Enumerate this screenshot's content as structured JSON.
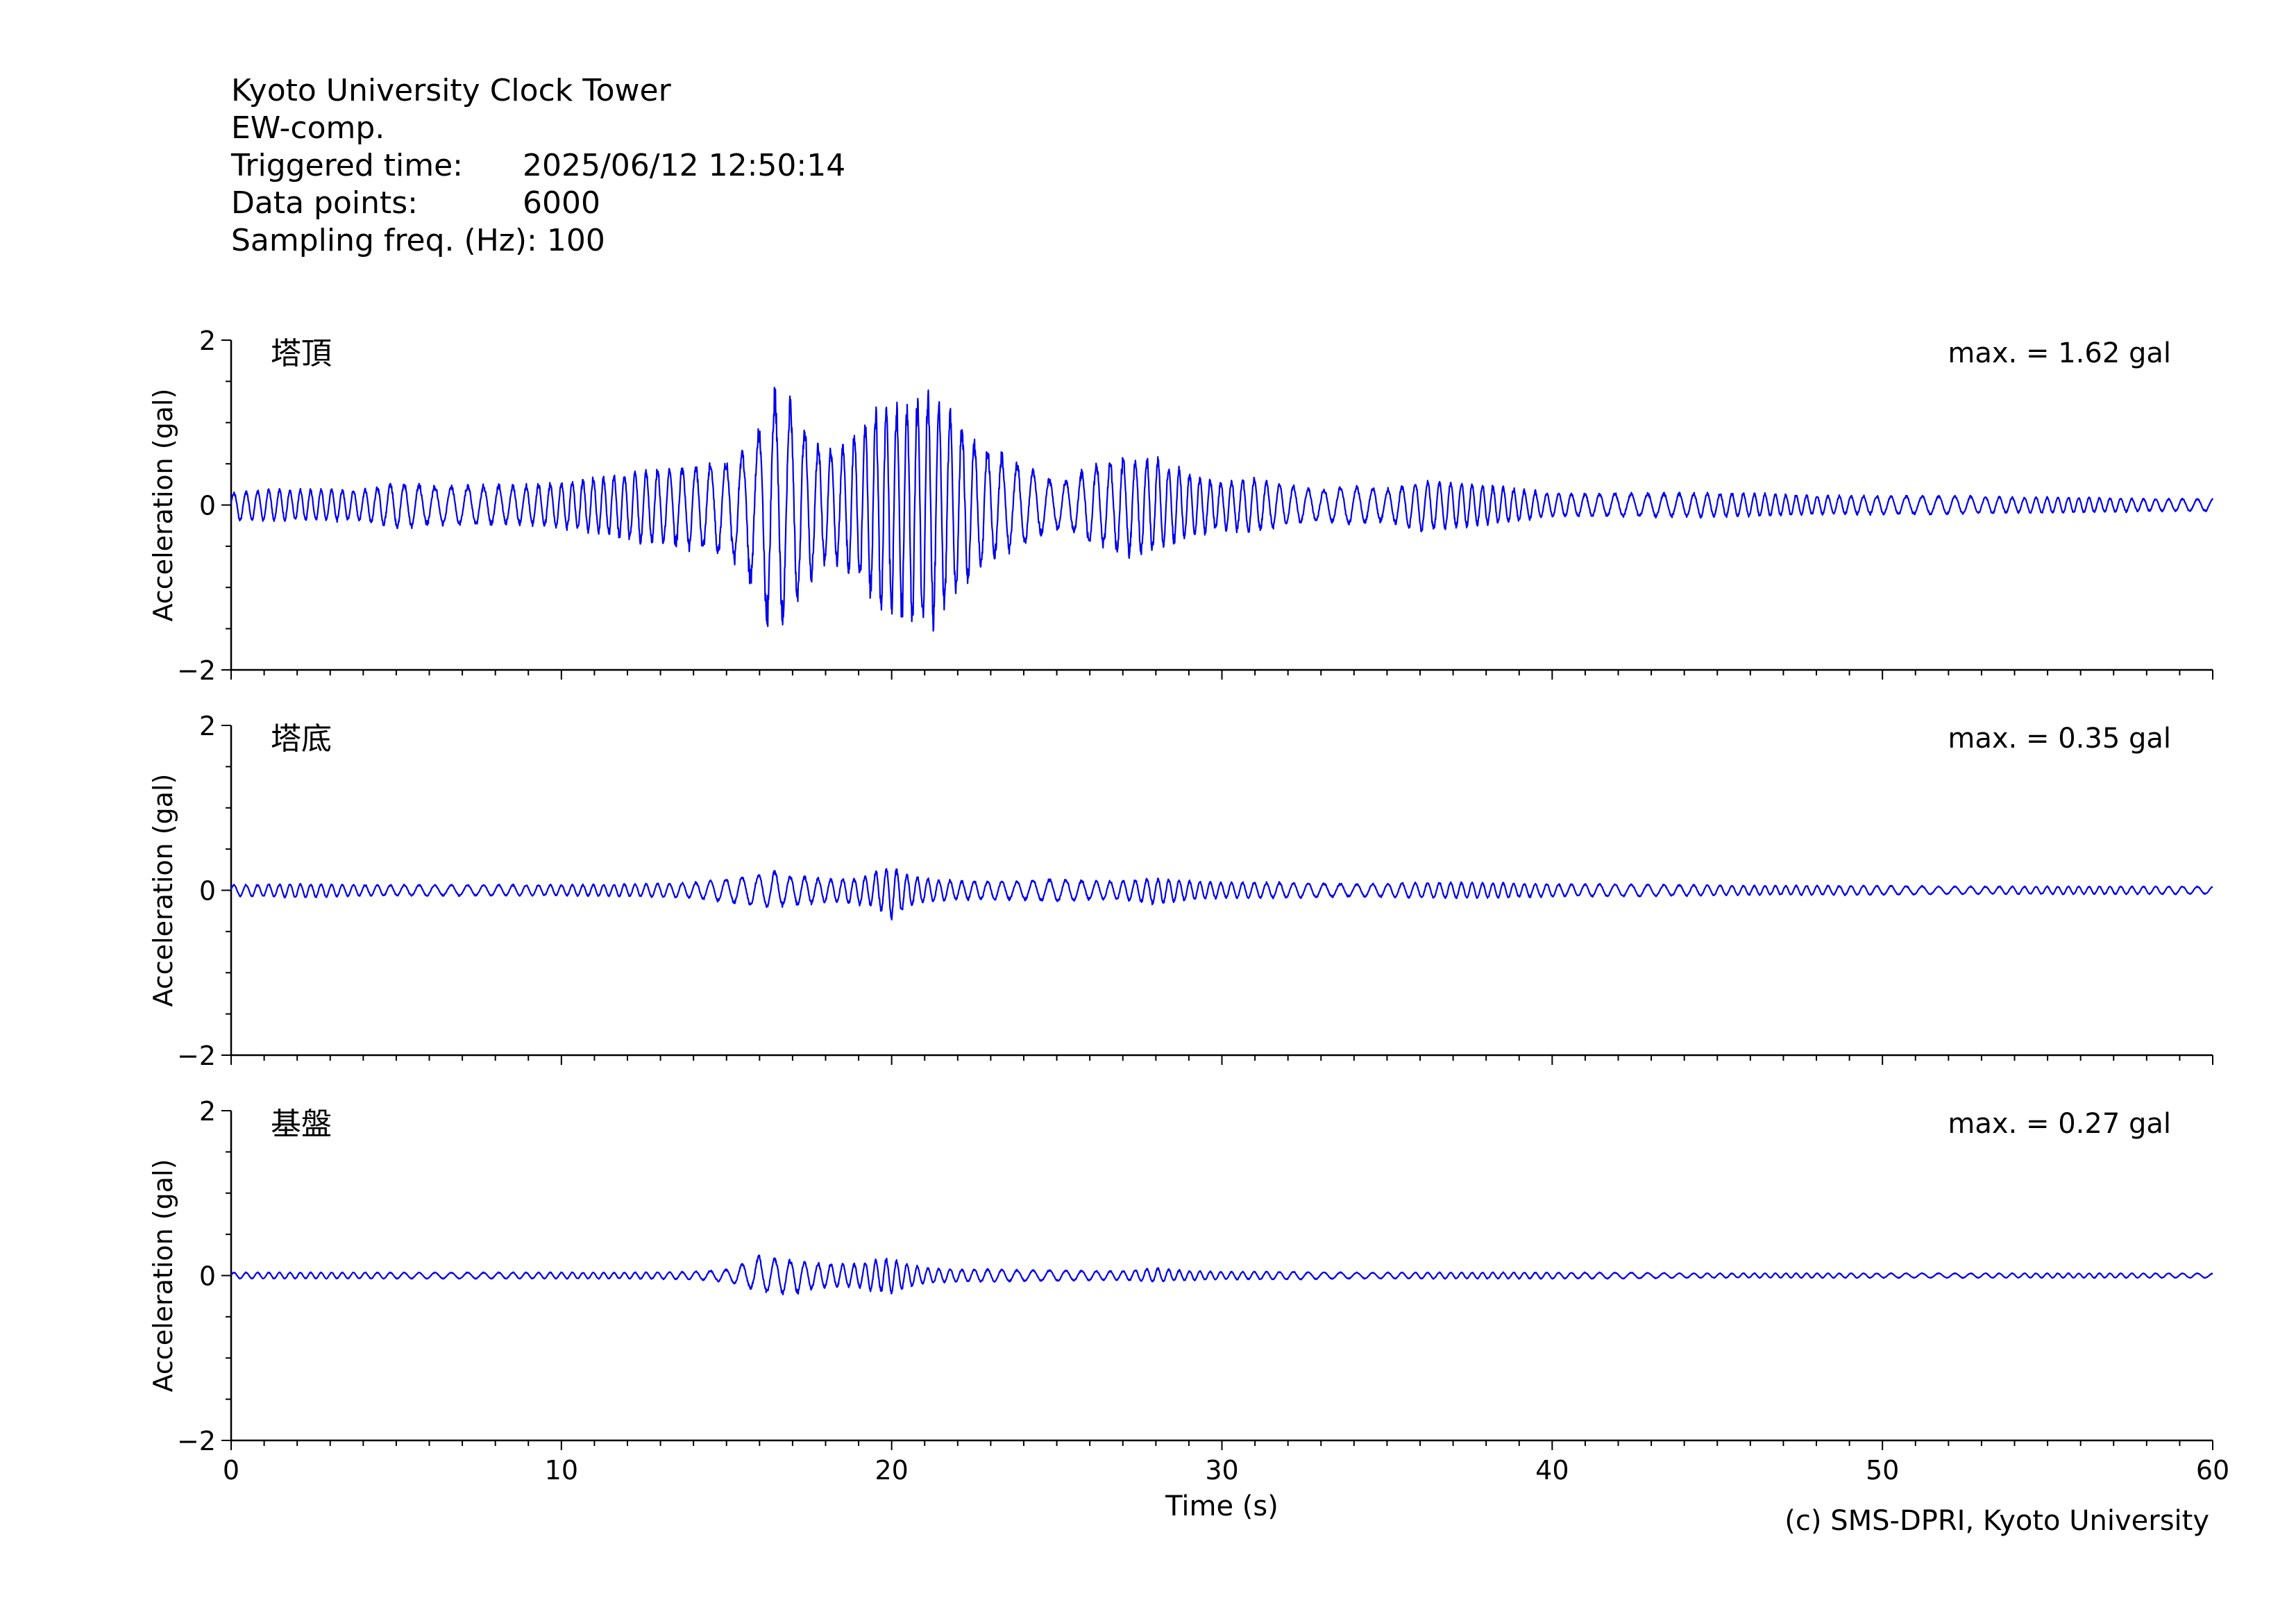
{
  "header": {
    "station": "Kyoto University Clock Tower",
    "component": "EW-comp.",
    "triggered_label": "Triggered time:",
    "triggered_value": "2025/06/12 12:50:14",
    "points_label": "Data points:",
    "points_value": "6000",
    "freq_label": "Sampling freq. (Hz):",
    "freq_value": "100"
  },
  "credit": "(c) SMS-DPRI, Kyoto University",
  "colors": {
    "trace": "#0000ee",
    "axes": "#000000"
  },
  "chart_data": [
    {
      "type": "line",
      "panel_label": "塔頂",
      "max_text": "max. = 1.62 gal",
      "ylabel": "Acceleration (gal)",
      "xlabel": "",
      "xlim": [
        0,
        60
      ],
      "ylim": [
        -2,
        2
      ],
      "yticks": [
        -2,
        0,
        2
      ],
      "ytick_labels": [
        "−2",
        "0",
        "2"
      ],
      "xticks": [
        0,
        10,
        20,
        30,
        40,
        50,
        60
      ],
      "xtick_labels": [],
      "series": [
        {
          "x": [
            0,
            1,
            2,
            3,
            4,
            5,
            6,
            7,
            8,
            9,
            10,
            11,
            12,
            13,
            14,
            15,
            15.5,
            16,
            16.3,
            16.6,
            17,
            17.5,
            18,
            18.5,
            19,
            19.5,
            20,
            20.5,
            21,
            21.2,
            21.5,
            22,
            22.5,
            23,
            23.5,
            24,
            24.5,
            25,
            25.5,
            26,
            26.5,
            27,
            27.5,
            28,
            28.5,
            29,
            30,
            31,
            32,
            33,
            34,
            35,
            36,
            37,
            38,
            39,
            40,
            42,
            44,
            46,
            48,
            50,
            52,
            54,
            56,
            58,
            60
          ],
          "y_upper": [
            0.15,
            0.2,
            0.2,
            0.2,
            0.2,
            0.3,
            0.25,
            0.25,
            0.25,
            0.25,
            0.3,
            0.35,
            0.4,
            0.45,
            0.5,
            0.55,
            0.7,
            1.0,
            1.4,
            1.4,
            1.3,
            0.9,
            0.7,
            0.8,
            1.0,
            1.2,
            1.3,
            1.3,
            1.45,
            1.45,
            1.3,
            1.1,
            0.8,
            0.7,
            0.6,
            0.5,
            0.4,
            0.3,
            0.35,
            0.5,
            0.55,
            0.6,
            0.6,
            0.6,
            0.5,
            0.4,
            0.3,
            0.35,
            0.25,
            0.2,
            0.25,
            0.2,
            0.3,
            0.3,
            0.25,
            0.2,
            0.15,
            0.15,
            0.15,
            0.15,
            0.12,
            0.12,
            0.12,
            0.1,
            0.1,
            0.08,
            0.08
          ],
          "y_lower": [
            -0.2,
            -0.2,
            -0.2,
            -0.2,
            -0.2,
            -0.3,
            -0.25,
            -0.25,
            -0.25,
            -0.25,
            -0.3,
            -0.35,
            -0.45,
            -0.5,
            -0.55,
            -0.65,
            -0.9,
            -1.2,
            -1.6,
            -1.5,
            -1.4,
            -1.0,
            -0.7,
            -0.8,
            -1.0,
            -1.3,
            -1.4,
            -1.5,
            -1.62,
            -1.6,
            -1.4,
            -1.2,
            -0.9,
            -0.7,
            -0.6,
            -0.5,
            -0.4,
            -0.3,
            -0.35,
            -0.5,
            -0.55,
            -0.6,
            -0.65,
            -0.6,
            -0.5,
            -0.4,
            -0.3,
            -0.35,
            -0.25,
            -0.2,
            -0.25,
            -0.2,
            -0.35,
            -0.3,
            -0.25,
            -0.2,
            -0.15,
            -0.15,
            -0.15,
            -0.15,
            -0.12,
            -0.12,
            -0.12,
            -0.1,
            -0.1,
            -0.08,
            -0.08
          ]
        }
      ]
    },
    {
      "type": "line",
      "panel_label": "塔底",
      "max_text": "max. = 0.35 gal",
      "ylabel": "Acceleration (gal)",
      "xlabel": "",
      "xlim": [
        0,
        60
      ],
      "ylim": [
        -2,
        2
      ],
      "yticks": [
        -2,
        0,
        2
      ],
      "ytick_labels": [
        "−2",
        "0",
        "2"
      ],
      "xticks": [
        0,
        10,
        20,
        30,
        40,
        50,
        60
      ],
      "xtick_labels": [],
      "series": [
        {
          "x": [
            0,
            2,
            4,
            6,
            8,
            10,
            12,
            14,
            15,
            16,
            16.5,
            17,
            18,
            19,
            19.5,
            20,
            20.5,
            21,
            22,
            23,
            24,
            25,
            26,
            27,
            28,
            29,
            30,
            32,
            34,
            36,
            38,
            40,
            42,
            44,
            46,
            48,
            50,
            52,
            54,
            56,
            58,
            60
          ],
          "y_upper": [
            0.07,
            0.08,
            0.07,
            0.07,
            0.07,
            0.07,
            0.08,
            0.1,
            0.15,
            0.2,
            0.25,
            0.18,
            0.15,
            0.15,
            0.25,
            0.3,
            0.2,
            0.15,
            0.12,
            0.12,
            0.12,
            0.15,
            0.12,
            0.12,
            0.15,
            0.12,
            0.1,
            0.1,
            0.08,
            0.1,
            0.1,
            0.08,
            0.08,
            0.07,
            0.06,
            0.06,
            0.06,
            0.05,
            0.05,
            0.05,
            0.05,
            0.05
          ],
          "y_lower": [
            -0.07,
            -0.1,
            -0.07,
            -0.07,
            -0.07,
            -0.07,
            -0.08,
            -0.1,
            -0.15,
            -0.22,
            -0.2,
            -0.2,
            -0.15,
            -0.18,
            -0.2,
            -0.35,
            -0.22,
            -0.15,
            -0.12,
            -0.12,
            -0.12,
            -0.15,
            -0.12,
            -0.12,
            -0.18,
            -0.12,
            -0.1,
            -0.1,
            -0.08,
            -0.1,
            -0.1,
            -0.08,
            -0.08,
            -0.07,
            -0.06,
            -0.06,
            -0.06,
            -0.05,
            -0.05,
            -0.05,
            -0.05,
            -0.05
          ]
        }
      ]
    },
    {
      "type": "line",
      "panel_label": "基盤",
      "max_text": "max. = 0.27 gal",
      "ylabel": "Acceleration (gal)",
      "xlabel": "Time (s)",
      "xlim": [
        0,
        60
      ],
      "ylim": [
        -2,
        2
      ],
      "yticks": [
        -2,
        0,
        2
      ],
      "ytick_labels": [
        "−2",
        "0",
        "2"
      ],
      "xticks": [
        0,
        10,
        20,
        30,
        40,
        50,
        60
      ],
      "xtick_labels": [
        "0",
        "10",
        "20",
        "30",
        "40",
        "50",
        "60"
      ],
      "series": [
        {
          "x": [
            0,
            2,
            4,
            6,
            8,
            10,
            12,
            14,
            15,
            15.5,
            16,
            16.5,
            17,
            17.5,
            18,
            19,
            19.5,
            20,
            20.5,
            21,
            22,
            23,
            24,
            25,
            26,
            27,
            28,
            29,
            30,
            32,
            34,
            36,
            38,
            40,
            42,
            44,
            46,
            48,
            50,
            52,
            54,
            56,
            58,
            60
          ],
          "y_upper": [
            0.04,
            0.04,
            0.04,
            0.04,
            0.04,
            0.04,
            0.04,
            0.05,
            0.08,
            0.15,
            0.27,
            0.22,
            0.2,
            0.18,
            0.15,
            0.15,
            0.2,
            0.22,
            0.15,
            0.1,
            0.08,
            0.08,
            0.07,
            0.07,
            0.06,
            0.06,
            0.1,
            0.06,
            0.05,
            0.05,
            0.04,
            0.04,
            0.04,
            0.04,
            0.04,
            0.03,
            0.03,
            0.03,
            0.03,
            0.03,
            0.03,
            0.03,
            0.03,
            0.03
          ],
          "y_lower": [
            -0.04,
            -0.04,
            -0.04,
            -0.04,
            -0.04,
            -0.04,
            -0.04,
            -0.05,
            -0.08,
            -0.15,
            -0.2,
            -0.22,
            -0.25,
            -0.18,
            -0.15,
            -0.15,
            -0.2,
            -0.22,
            -0.15,
            -0.1,
            -0.08,
            -0.08,
            -0.07,
            -0.07,
            -0.06,
            -0.06,
            -0.08,
            -0.06,
            -0.05,
            -0.05,
            -0.04,
            -0.04,
            -0.04,
            -0.04,
            -0.04,
            -0.03,
            -0.03,
            -0.03,
            -0.03,
            -0.03,
            -0.03,
            -0.03,
            -0.03,
            -0.03
          ]
        }
      ]
    }
  ]
}
